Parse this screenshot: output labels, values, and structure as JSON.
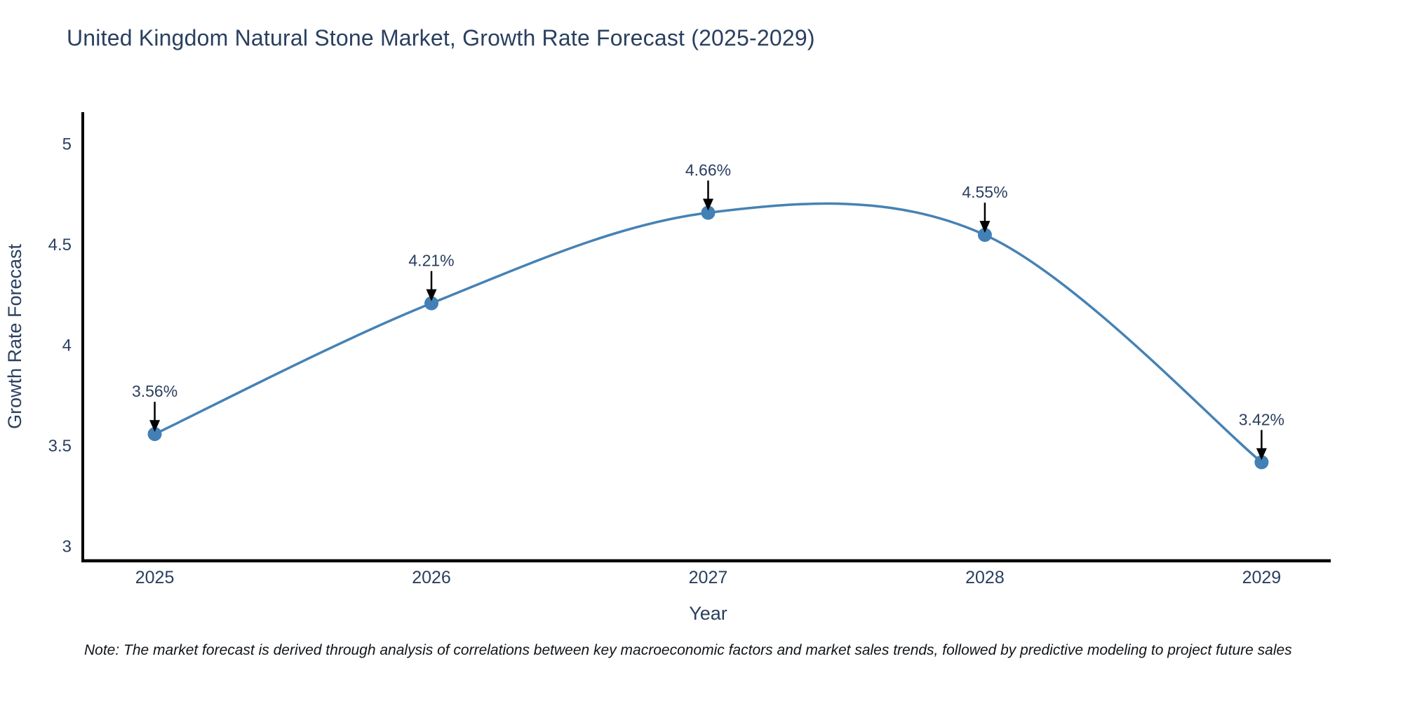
{
  "page": {
    "background": "#ffffff"
  },
  "chart_data": {
    "type": "line",
    "line_shape": "spline",
    "title": "United Kingdom Natural Stone Market, Growth Rate Forecast (2025-2029)",
    "xlabel": "Year",
    "ylabel": "Growth Rate Forecast",
    "x": [
      2025,
      2026,
      2027,
      2028,
      2029
    ],
    "values": [
      3.56,
      4.21,
      4.66,
      4.55,
      3.42
    ],
    "point_labels": [
      "3.56%",
      "4.21%",
      "4.66%",
      "4.55%",
      "3.42%"
    ],
    "xtick_labels": [
      "2025",
      "2026",
      "2027",
      "2028",
      "2029"
    ],
    "yticks": [
      3,
      3.5,
      4,
      4.5,
      5
    ],
    "ytick_labels": [
      "3",
      "3.5",
      "4",
      "4.5",
      "5"
    ],
    "ylim": [
      2.93,
      5.16
    ],
    "xlim": [
      2024.74,
      2029.25
    ],
    "grid": false,
    "legend": false,
    "line_color": "#4682b4",
    "marker_color": "#4380b5",
    "axis_color": "#000000",
    "tick_label_color": "#2a3f5f",
    "axis_title_color": "#2a3f5f",
    "annotation_text_color": "#2a3f5f",
    "arrow_color": "#000000"
  },
  "note": {
    "text": "Note: The market forecast is derived through analysis of correlations between key macroeconomic factors and market sales trends, followed by predictive modeling to project future sales"
  }
}
